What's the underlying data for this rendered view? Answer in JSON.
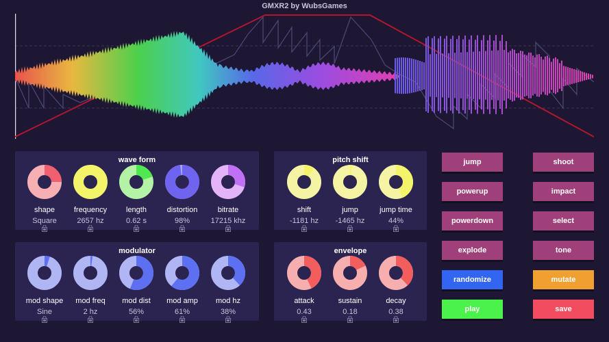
{
  "app": {
    "title": "GMXR2 by WubsGames"
  },
  "colors": {
    "background": "#1d1733",
    "panel": "#2c2450",
    "envelope_line": "#b3162e",
    "pitch_line": "#4a4670",
    "button_default": "#a0407a",
    "randomize": "#3266f2",
    "play": "#4cf24c",
    "mutate": "#f0a030",
    "save": "#f24c60"
  },
  "panels": {
    "waveform": {
      "title": "wave form",
      "knobs": [
        {
          "label": "shape",
          "value": "Square",
          "fraction": 0.25,
          "color": "#f06070",
          "ring": "#f6b0b4"
        },
        {
          "label": "frequency",
          "value": "2657 hz",
          "fraction": 0.15,
          "color": "#f4f46a",
          "ring": "#f4f46a"
        },
        {
          "label": "length",
          "value": "0.62 s",
          "fraction": 0.2,
          "color": "#50e850",
          "ring": "#b4f2a6"
        },
        {
          "label": "distortion",
          "value": "98%",
          "fraction": 0.98,
          "color": "#6e64f0",
          "ring": "#a8a2f4"
        },
        {
          "label": "bitrate",
          "value": "17215 khz",
          "fraction": 0.3,
          "color": "#c070f4",
          "ring": "#e4b4f8"
        }
      ]
    },
    "pitch": {
      "title": "pitch shift",
      "knobs": [
        {
          "label": "shift",
          "value": "-1181 hz",
          "fraction": 0.1,
          "color": "#f4f46a",
          "ring": "#f4f4a4"
        },
        {
          "label": "jump",
          "value": "-1465 hz",
          "fraction": 0.0,
          "color": "#f4f46a",
          "ring": "#f4f4a4"
        },
        {
          "label": "jump time",
          "value": "44%",
          "fraction": 0.44,
          "color": "#f4f46a",
          "ring": "#f4f4a4"
        }
      ]
    },
    "modulator": {
      "title": "modulator",
      "knobs": [
        {
          "label": "mod shape",
          "value": "Sine",
          "fraction": 0.05,
          "color": "#5e70f2",
          "ring": "#b0b6f4"
        },
        {
          "label": "mod freq",
          "value": "2 hz",
          "fraction": 0.01,
          "color": "#5e70f2",
          "ring": "#b0b6f4"
        },
        {
          "label": "mod dist",
          "value": "56%",
          "fraction": 0.56,
          "color": "#5e70f2",
          "ring": "#b0b6f4"
        },
        {
          "label": "mod amp",
          "value": "61%",
          "fraction": 0.61,
          "color": "#5e70f2",
          "ring": "#b0b6f4"
        },
        {
          "label": "mod hz",
          "value": "38%",
          "fraction": 0.38,
          "color": "#5e70f2",
          "ring": "#b0b6f4"
        }
      ]
    },
    "envelope": {
      "title": "envelope",
      "knobs": [
        {
          "label": "attack",
          "value": "0.43",
          "fraction": 0.43,
          "color": "#f25e5e",
          "ring": "#f6aeae"
        },
        {
          "label": "sustain",
          "value": "0.18",
          "fraction": 0.18,
          "color": "#f25e5e",
          "ring": "#f6aeae"
        },
        {
          "label": "decay",
          "value": "0.38",
          "fraction": 0.38,
          "color": "#f25e5e",
          "ring": "#f6aeae"
        }
      ]
    }
  },
  "buttons": {
    "jump": "jump",
    "shoot": "shoot",
    "powerup": "powerup",
    "impact": "impact",
    "powerdown": "powerdown",
    "select": "select",
    "explode": "explode",
    "tone": "tone",
    "randomize": "randomize",
    "mutate": "mutate",
    "play": "play",
    "save": "save"
  }
}
